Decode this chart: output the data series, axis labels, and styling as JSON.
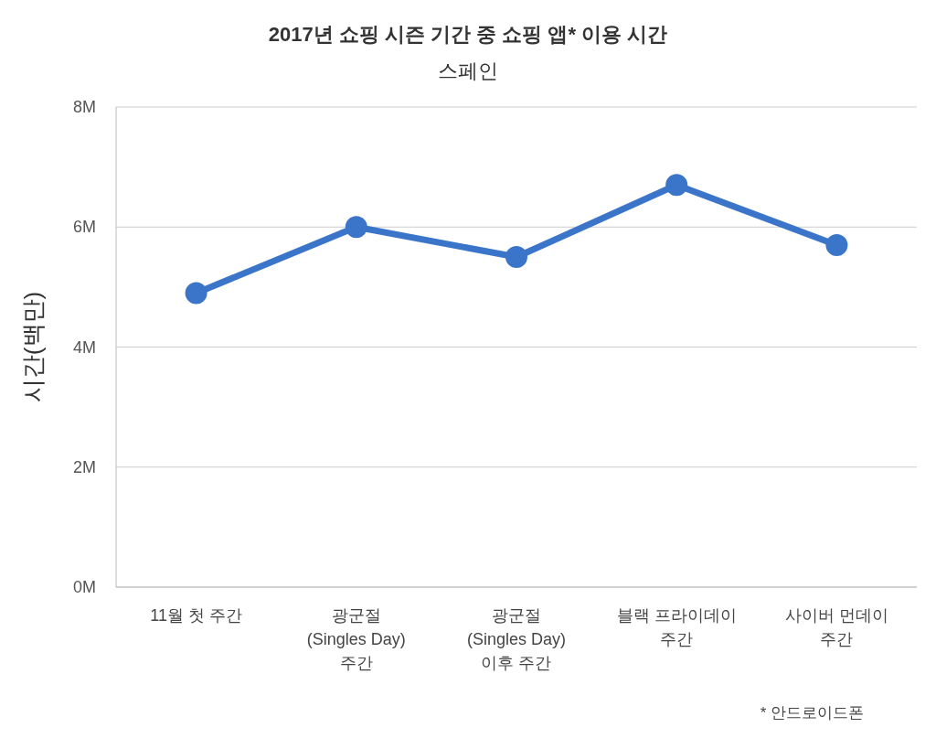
{
  "chart_data": {
    "type": "line",
    "title": "2017년 쇼핑 시즌 기간 중 쇼핑 앱* 이용 시간",
    "subtitle": "스페인",
    "ylabel": "시간(백만)",
    "annotations": [
      "* 안드로이드폰"
    ],
    "categories": [
      "11월 첫 주간",
      "광군절\n(Singles Day)\n주간",
      "광군절\n(Singles Day)\n이후 주간",
      "블랙 프라이데이\n주간",
      "사이버 먼데이\n주간"
    ],
    "series": [
      {
        "color": "#3a75c9",
        "values": [
          4.9,
          6.0,
          5.5,
          6.7,
          5.7
        ]
      }
    ],
    "ylim": [
      0,
      8
    ],
    "yticks": [
      {
        "value": 0,
        "label": "0M"
      },
      {
        "value": 2,
        "label": "2M"
      },
      {
        "value": 4,
        "label": "4M"
      },
      {
        "value": 6,
        "label": "6M"
      },
      {
        "value": 8,
        "label": "8M"
      }
    ],
    "grid": "y",
    "marker": "circle",
    "line_style": "solid"
  }
}
